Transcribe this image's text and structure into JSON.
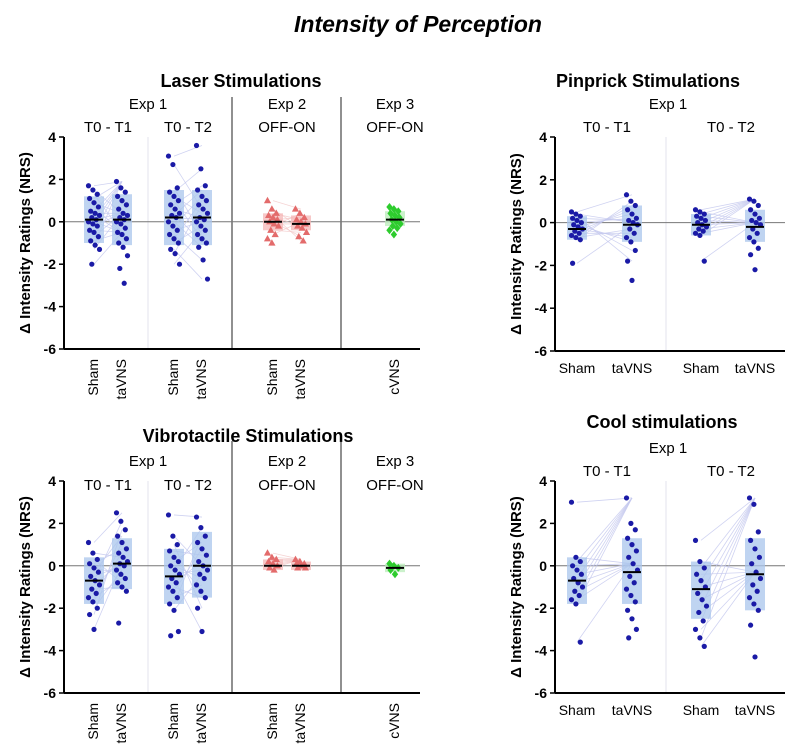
{
  "title": "Intensity of Perception",
  "chart_data": [
    {
      "id": "laser",
      "type": "scatter",
      "title": "Laser Stimulations",
      "ylabel": "Δ Intensity Ratings (NRS)",
      "ylim": [
        -6,
        4
      ],
      "yticks": [
        4,
        2,
        0,
        -2,
        -4,
        -6
      ],
      "rotate_categories": true,
      "groups": [
        {
          "label": "Exp 1",
          "sublabels": [
            "T0 - T1",
            "T0 - T2"
          ]
        },
        {
          "label": "Exp 2",
          "sublabels": [
            "OFF-ON"
          ]
        },
        {
          "label": "Exp 3",
          "sublabels": [
            "OFF-ON"
          ]
        }
      ],
      "series": [
        {
          "category": "Sham",
          "group": "Exp 1 T0 - T1",
          "color": "#1a1aa6",
          "marker": "circle",
          "mean": 0.1,
          "q1": -1.0,
          "q3": 1.2,
          "values": [
            1.7,
            1.5,
            1.3,
            1.1,
            0.9,
            0.7,
            0.5,
            0.4,
            0.3,
            0.2,
            0.1,
            0.0,
            -0.1,
            -0.2,
            -0.4,
            -0.5,
            -0.7,
            -0.9,
            -1.1,
            -1.3,
            -2.0
          ]
        },
        {
          "category": "taVNS",
          "group": "Exp 1 T0 - T1",
          "color": "#1a1aa6",
          "marker": "circle",
          "mean": 0.1,
          "q1": -1.1,
          "q3": 1.3,
          "values": [
            1.9,
            1.6,
            1.4,
            1.2,
            1.0,
            0.8,
            0.6,
            0.4,
            0.3,
            0.2,
            0.1,
            0.0,
            -0.1,
            -0.3,
            -0.5,
            -0.6,
            -0.8,
            -1.0,
            -1.2,
            -1.6,
            -2.2,
            -2.9
          ]
        },
        {
          "category": "Sham",
          "group": "Exp 1 T0 - T2",
          "color": "#1a1aa6",
          "marker": "circle",
          "mean": 0.2,
          "q1": -1.1,
          "q3": 1.5,
          "values": [
            3.1,
            2.7,
            1.6,
            1.4,
            1.2,
            1.0,
            0.8,
            0.6,
            0.4,
            0.3,
            0.2,
            0.0,
            -0.2,
            -0.4,
            -0.6,
            -0.8,
            -1.0,
            -1.3,
            -1.5,
            -2.0
          ]
        },
        {
          "category": "taVNS",
          "group": "Exp 1 T0 - T2",
          "color": "#1a1aa6",
          "marker": "circle",
          "mean": 0.2,
          "q1": -1.1,
          "q3": 1.5,
          "values": [
            3.6,
            2.5,
            1.7,
            1.5,
            1.2,
            1.0,
            0.8,
            0.6,
            0.4,
            0.2,
            0.1,
            0.0,
            -0.2,
            -0.4,
            -0.6,
            -0.8,
            -1.0,
            -1.2,
            -1.8,
            -2.7
          ]
        },
        {
          "category": "Sham",
          "group": "Exp 2 OFF-ON",
          "color": "#e36b6b",
          "marker": "triangle",
          "mean": 0.0,
          "q1": -0.4,
          "q3": 0.4,
          "values": [
            1.0,
            0.6,
            0.4,
            0.3,
            0.2,
            0.1,
            0.0,
            -0.1,
            -0.2,
            -0.4,
            -0.6,
            -0.8,
            -1.0
          ]
        },
        {
          "category": "taVNS",
          "group": "Exp 2 OFF-ON",
          "color": "#e36b6b",
          "marker": "triangle",
          "mean": -0.1,
          "q1": -0.4,
          "q3": 0.3,
          "values": [
            0.6,
            0.4,
            0.2,
            0.1,
            0.0,
            -0.1,
            -0.2,
            -0.3,
            -0.5,
            -0.7,
            -0.9
          ]
        },
        {
          "category": "cVNS",
          "group": "Exp 3 OFF-ON",
          "color": "#2ecc2e",
          "marker": "diamond",
          "mean": 0.1,
          "q1": -0.2,
          "q3": 0.5,
          "values": [
            0.7,
            0.6,
            0.5,
            0.4,
            0.3,
            0.2,
            0.1,
            0.0,
            -0.1,
            -0.2,
            -0.3,
            -0.4,
            -0.6
          ]
        }
      ]
    },
    {
      "id": "pinprick",
      "type": "scatter",
      "title": "Pinprick  Stimulations",
      "ylabel": "Δ Intensity Ratings (NRS)",
      "ylim": [
        -6,
        4
      ],
      "yticks": [
        4,
        2,
        0,
        -2,
        -4,
        -6
      ],
      "rotate_categories": false,
      "groups": [
        {
          "label": "Exp 1",
          "sublabels": [
            "T0 - T1",
            "T0 - T2"
          ]
        }
      ],
      "series": [
        {
          "category": "Sham",
          "group": "Exp 1 T0 - T1",
          "color": "#1a1aa6",
          "marker": "circle",
          "mean": -0.3,
          "q1": -0.8,
          "q3": 0.3,
          "values": [
            0.5,
            0.4,
            0.3,
            0.2,
            0.1,
            0.0,
            -0.1,
            -0.2,
            -0.3,
            -0.4,
            -0.5,
            -0.6,
            -0.7,
            -0.8,
            -1.9
          ]
        },
        {
          "category": "taVNS",
          "group": "Exp 1 T0 - T1",
          "color": "#1a1aa6",
          "marker": "circle",
          "mean": -0.1,
          "q1": -0.9,
          "q3": 0.8,
          "values": [
            1.3,
            1.0,
            0.8,
            0.6,
            0.4,
            0.2,
            0.1,
            0.0,
            -0.1,
            -0.3,
            -0.5,
            -0.7,
            -0.9,
            -1.3,
            -1.8,
            -2.7
          ]
        },
        {
          "category": "Sham",
          "group": "Exp 1 T0 - T2",
          "color": "#1a1aa6",
          "marker": "circle",
          "mean": -0.1,
          "q1": -0.6,
          "q3": 0.4,
          "values": [
            0.6,
            0.5,
            0.4,
            0.3,
            0.2,
            0.1,
            0.0,
            -0.1,
            -0.2,
            -0.3,
            -0.4,
            -0.5,
            -0.6,
            -1.8
          ]
        },
        {
          "category": "taVNS",
          "group": "Exp 1 T0 - T2",
          "color": "#1a1aa6",
          "marker": "circle",
          "mean": -0.2,
          "q1": -0.9,
          "q3": 0.6,
          "values": [
            1.1,
            1.0,
            0.8,
            0.6,
            0.4,
            0.2,
            0.1,
            0.0,
            -0.1,
            -0.3,
            -0.5,
            -0.7,
            -0.9,
            -1.2,
            -1.5,
            -2.2
          ]
        }
      ]
    },
    {
      "id": "vibrotactile",
      "type": "scatter",
      "title": "Vibrotactile Stimulations",
      "ylabel": "Δ Intensity Ratings (NRS)",
      "ylim": [
        -6,
        4
      ],
      "yticks": [
        4,
        2,
        0,
        -2,
        -4,
        -6
      ],
      "rotate_categories": true,
      "groups": [
        {
          "label": "Exp 1",
          "sublabels": [
            "T0 - T1",
            "T0 - T2"
          ]
        },
        {
          "label": "Exp 2",
          "sublabels": [
            "OFF-ON"
          ]
        },
        {
          "label": "Exp 3",
          "sublabels": [
            "OFF-ON"
          ]
        }
      ],
      "series": [
        {
          "category": "Sham",
          "group": "Exp 1 T0 - T1",
          "color": "#1a1aa6",
          "marker": "circle",
          "mean": -0.7,
          "q1": -1.8,
          "q3": 0.4,
          "values": [
            1.1,
            0.6,
            0.3,
            0.1,
            -0.1,
            -0.3,
            -0.5,
            -0.7,
            -0.9,
            -1.1,
            -1.3,
            -1.5,
            -1.7,
            -2.0,
            -2.3,
            -3.0
          ]
        },
        {
          "category": "taVNS",
          "group": "Exp 1 T0 - T1",
          "color": "#1a1aa6",
          "marker": "circle",
          "mean": 0.1,
          "q1": -1.1,
          "q3": 1.3,
          "values": [
            2.5,
            2.1,
            1.7,
            1.4,
            1.1,
            0.8,
            0.6,
            0.4,
            0.2,
            0.1,
            0.0,
            -0.2,
            -0.4,
            -0.6,
            -0.8,
            -1.0,
            -1.2,
            -2.7
          ]
        },
        {
          "category": "Sham",
          "group": "Exp 1 T0 - T2",
          "color": "#1a1aa6",
          "marker": "circle",
          "mean": -0.5,
          "q1": -1.8,
          "q3": 0.8,
          "values": [
            2.4,
            1.4,
            1.0,
            0.7,
            0.4,
            0.2,
            0.0,
            -0.2,
            -0.4,
            -0.6,
            -0.8,
            -1.0,
            -1.2,
            -1.5,
            -1.8,
            -2.1,
            -3.1,
            -3.3
          ]
        },
        {
          "category": "taVNS",
          "group": "Exp 1 T0 - T2",
          "color": "#1a1aa6",
          "marker": "circle",
          "mean": 0.0,
          "q1": -1.5,
          "q3": 1.6,
          "values": [
            2.3,
            1.8,
            1.4,
            1.1,
            0.8,
            0.5,
            0.2,
            0.0,
            -0.2,
            -0.4,
            -0.6,
            -0.9,
            -1.2,
            -1.5,
            -2.0,
            -3.1
          ]
        },
        {
          "category": "Sham",
          "group": "Exp 2 OFF-ON",
          "color": "#e36b6b",
          "marker": "triangle",
          "mean": 0.0,
          "q1": -0.2,
          "q3": 0.3,
          "values": [
            0.6,
            0.4,
            0.3,
            0.2,
            0.1,
            0.0,
            -0.1,
            -0.2
          ]
        },
        {
          "category": "taVNS",
          "group": "Exp 2 OFF-ON",
          "color": "#e36b6b",
          "marker": "triangle",
          "mean": 0.0,
          "q1": -0.2,
          "q3": 0.2,
          "values": [
            0.3,
            0.2,
            0.1,
            0.1,
            0.0,
            -0.1,
            -0.1
          ]
        },
        {
          "category": "cVNS",
          "group": "Exp 3 OFF-ON",
          "color": "#2ecc2e",
          "marker": "diamond",
          "mean": -0.1,
          "q1": -0.3,
          "q3": 0.1,
          "values": [
            0.1,
            0.0,
            -0.1,
            -0.2,
            -0.4
          ]
        }
      ]
    },
    {
      "id": "cool",
      "type": "scatter",
      "title": "Cool stimulations",
      "ylabel": "Δ Intensity Ratings (NRS)",
      "ylim": [
        -6,
        4
      ],
      "yticks": [
        4,
        2,
        0,
        -2,
        -4,
        -6
      ],
      "rotate_categories": false,
      "groups": [
        {
          "label": "Exp 1",
          "sublabels": [
            "T0 - T1",
            "T0 - T2"
          ]
        }
      ],
      "series": [
        {
          "category": "Sham",
          "group": "Exp 1 T0 - T1",
          "color": "#1a1aa6",
          "marker": "circle",
          "mean": -0.7,
          "q1": -1.8,
          "q3": 0.4,
          "values": [
            3.0,
            0.4,
            0.2,
            0.0,
            -0.2,
            -0.4,
            -0.6,
            -0.8,
            -1.0,
            -1.2,
            -1.4,
            -1.6,
            -1.8,
            -3.6
          ]
        },
        {
          "category": "taVNS",
          "group": "Exp 1 T0 - T1",
          "color": "#1a1aa6",
          "marker": "circle",
          "mean": -0.3,
          "q1": -1.8,
          "q3": 1.3,
          "values": [
            3.2,
            2.0,
            1.7,
            1.3,
            1.0,
            0.7,
            0.4,
            0.1,
            -0.2,
            -0.5,
            -0.8,
            -1.1,
            -1.4,
            -1.7,
            -2.1,
            -2.5,
            -3.0,
            -3.4
          ]
        },
        {
          "category": "Sham",
          "group": "Exp 1 T0 - T2",
          "color": "#1a1aa6",
          "marker": "circle",
          "mean": -1.1,
          "q1": -2.5,
          "q3": 0.2,
          "values": [
            1.2,
            0.2,
            -0.1,
            -0.4,
            -0.7,
            -1.0,
            -1.3,
            -1.6,
            -1.9,
            -2.2,
            -2.6,
            -3.0,
            -3.4,
            -3.8
          ]
        },
        {
          "category": "taVNS",
          "group": "Exp 1 T0 - T2",
          "color": "#1a1aa6",
          "marker": "circle",
          "mean": -0.4,
          "q1": -2.1,
          "q3": 1.3,
          "values": [
            3.2,
            2.9,
            1.6,
            1.2,
            0.8,
            0.4,
            0.1,
            -0.3,
            -0.6,
            -0.9,
            -1.2,
            -1.5,
            -1.8,
            -2.1,
            -2.8,
            -4.3
          ]
        }
      ]
    }
  ]
}
